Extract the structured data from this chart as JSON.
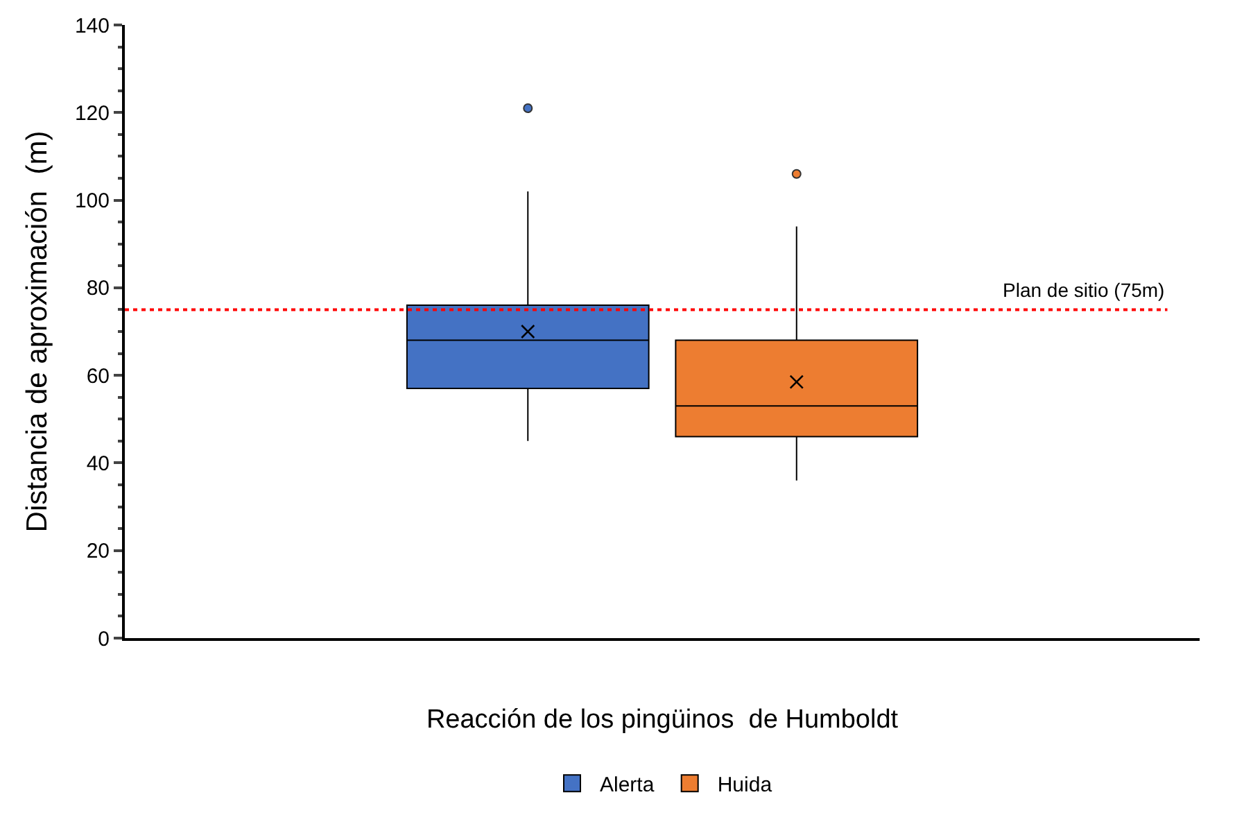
{
  "chart_data": {
    "type": "box",
    "xlabel": "Reacción de los pingüinos  de Humboldt",
    "ylabel": "Distancia de aproximación  (m)",
    "categories": [
      null
    ],
    "series": [
      {
        "name": "Alerta",
        "color": "#4472c4",
        "boxes": [
          {
            "low": 45,
            "q1": 57,
            "median": 68,
            "q3": 76,
            "high": 102,
            "mean": 70,
            "outliers": [
              121
            ]
          }
        ]
      },
      {
        "name": "Huida",
        "color": "#ed7d31",
        "boxes": [
          {
            "low": 36,
            "q1": 46,
            "median": 53,
            "q3": 68,
            "high": 94,
            "mean": 58.5,
            "outliers": [
              106
            ]
          }
        ]
      }
    ],
    "ylim": [
      0,
      140
    ],
    "yticks": [
      0,
      20,
      40,
      60,
      80,
      100,
      120,
      140
    ],
    "grid": false,
    "legend": "bottom",
    "ref_lines": [
      {
        "axis": "y",
        "value": 75,
        "label": "Plan de sitio (75m)",
        "color": "#ff0000",
        "line_style": "dotted"
      }
    ]
  }
}
